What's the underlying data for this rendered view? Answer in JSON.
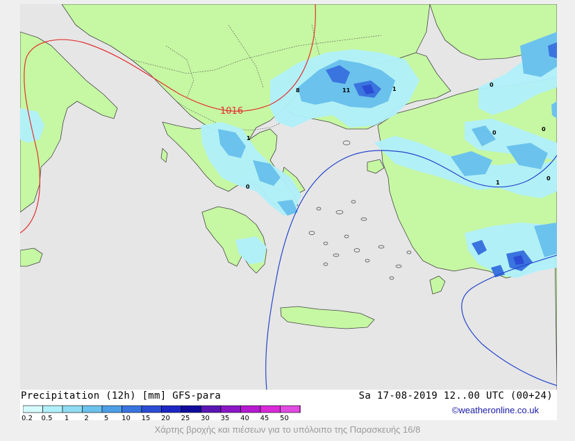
{
  "map": {
    "isobar_label": "1016",
    "point_values": [
      {
        "label": "8",
        "place": "northern-greece-upper"
      },
      {
        "label": "11",
        "place": "bulgaria-turkey-border"
      },
      {
        "label": "1",
        "place": "istanbul"
      },
      {
        "label": "1",
        "place": "northwest-greece"
      },
      {
        "label": "0",
        "place": "gulf-of-corinth"
      },
      {
        "label": "0",
        "place": "black-sea-coast"
      },
      {
        "label": "0",
        "place": "central-anatolia"
      },
      {
        "label": "0",
        "place": "east-anatolia"
      },
      {
        "label": "1",
        "place": "inner-anatolia"
      },
      {
        "label": "0",
        "place": "east-edge"
      }
    ],
    "colors": {
      "sea": "#e6e6e6",
      "land": "#c6f7a3",
      "coastline": "#444444",
      "high_isobar": "#e33030",
      "low_isobar": "#2545cc"
    }
  },
  "legend": {
    "title": "Precipitation (12h) [mm] GFS-para",
    "date": "Sa 17-08-2019 12..00 UTC (00+24)",
    "credit": "©weatheronline.co.uk",
    "scale": [
      {
        "label": "0.2",
        "color": "#d6fbff"
      },
      {
        "label": "0.5",
        "color": "#b0f0fb"
      },
      {
        "label": "1",
        "color": "#8fdcf3"
      },
      {
        "label": "2",
        "color": "#6bc2ec"
      },
      {
        "label": "5",
        "color": "#4c9fe6"
      },
      {
        "label": "10",
        "color": "#3a74df"
      },
      {
        "label": "15",
        "color": "#2b4cd4"
      },
      {
        "label": "20",
        "color": "#1e26c4"
      },
      {
        "label": "25",
        "color": "#0f0c9c"
      },
      {
        "label": "30",
        "color": "#5a16b4"
      },
      {
        "label": "35",
        "color": "#8a16c6"
      },
      {
        "label": "40",
        "color": "#b51ad0"
      },
      {
        "label": "45",
        "color": "#d82ad8"
      },
      {
        "label": "50",
        "color": "#e04be0"
      }
    ]
  },
  "caption": "Χάρτης βροχής και πιέσεων για το υπόλοιπο της Παρασκευής 16/8"
}
